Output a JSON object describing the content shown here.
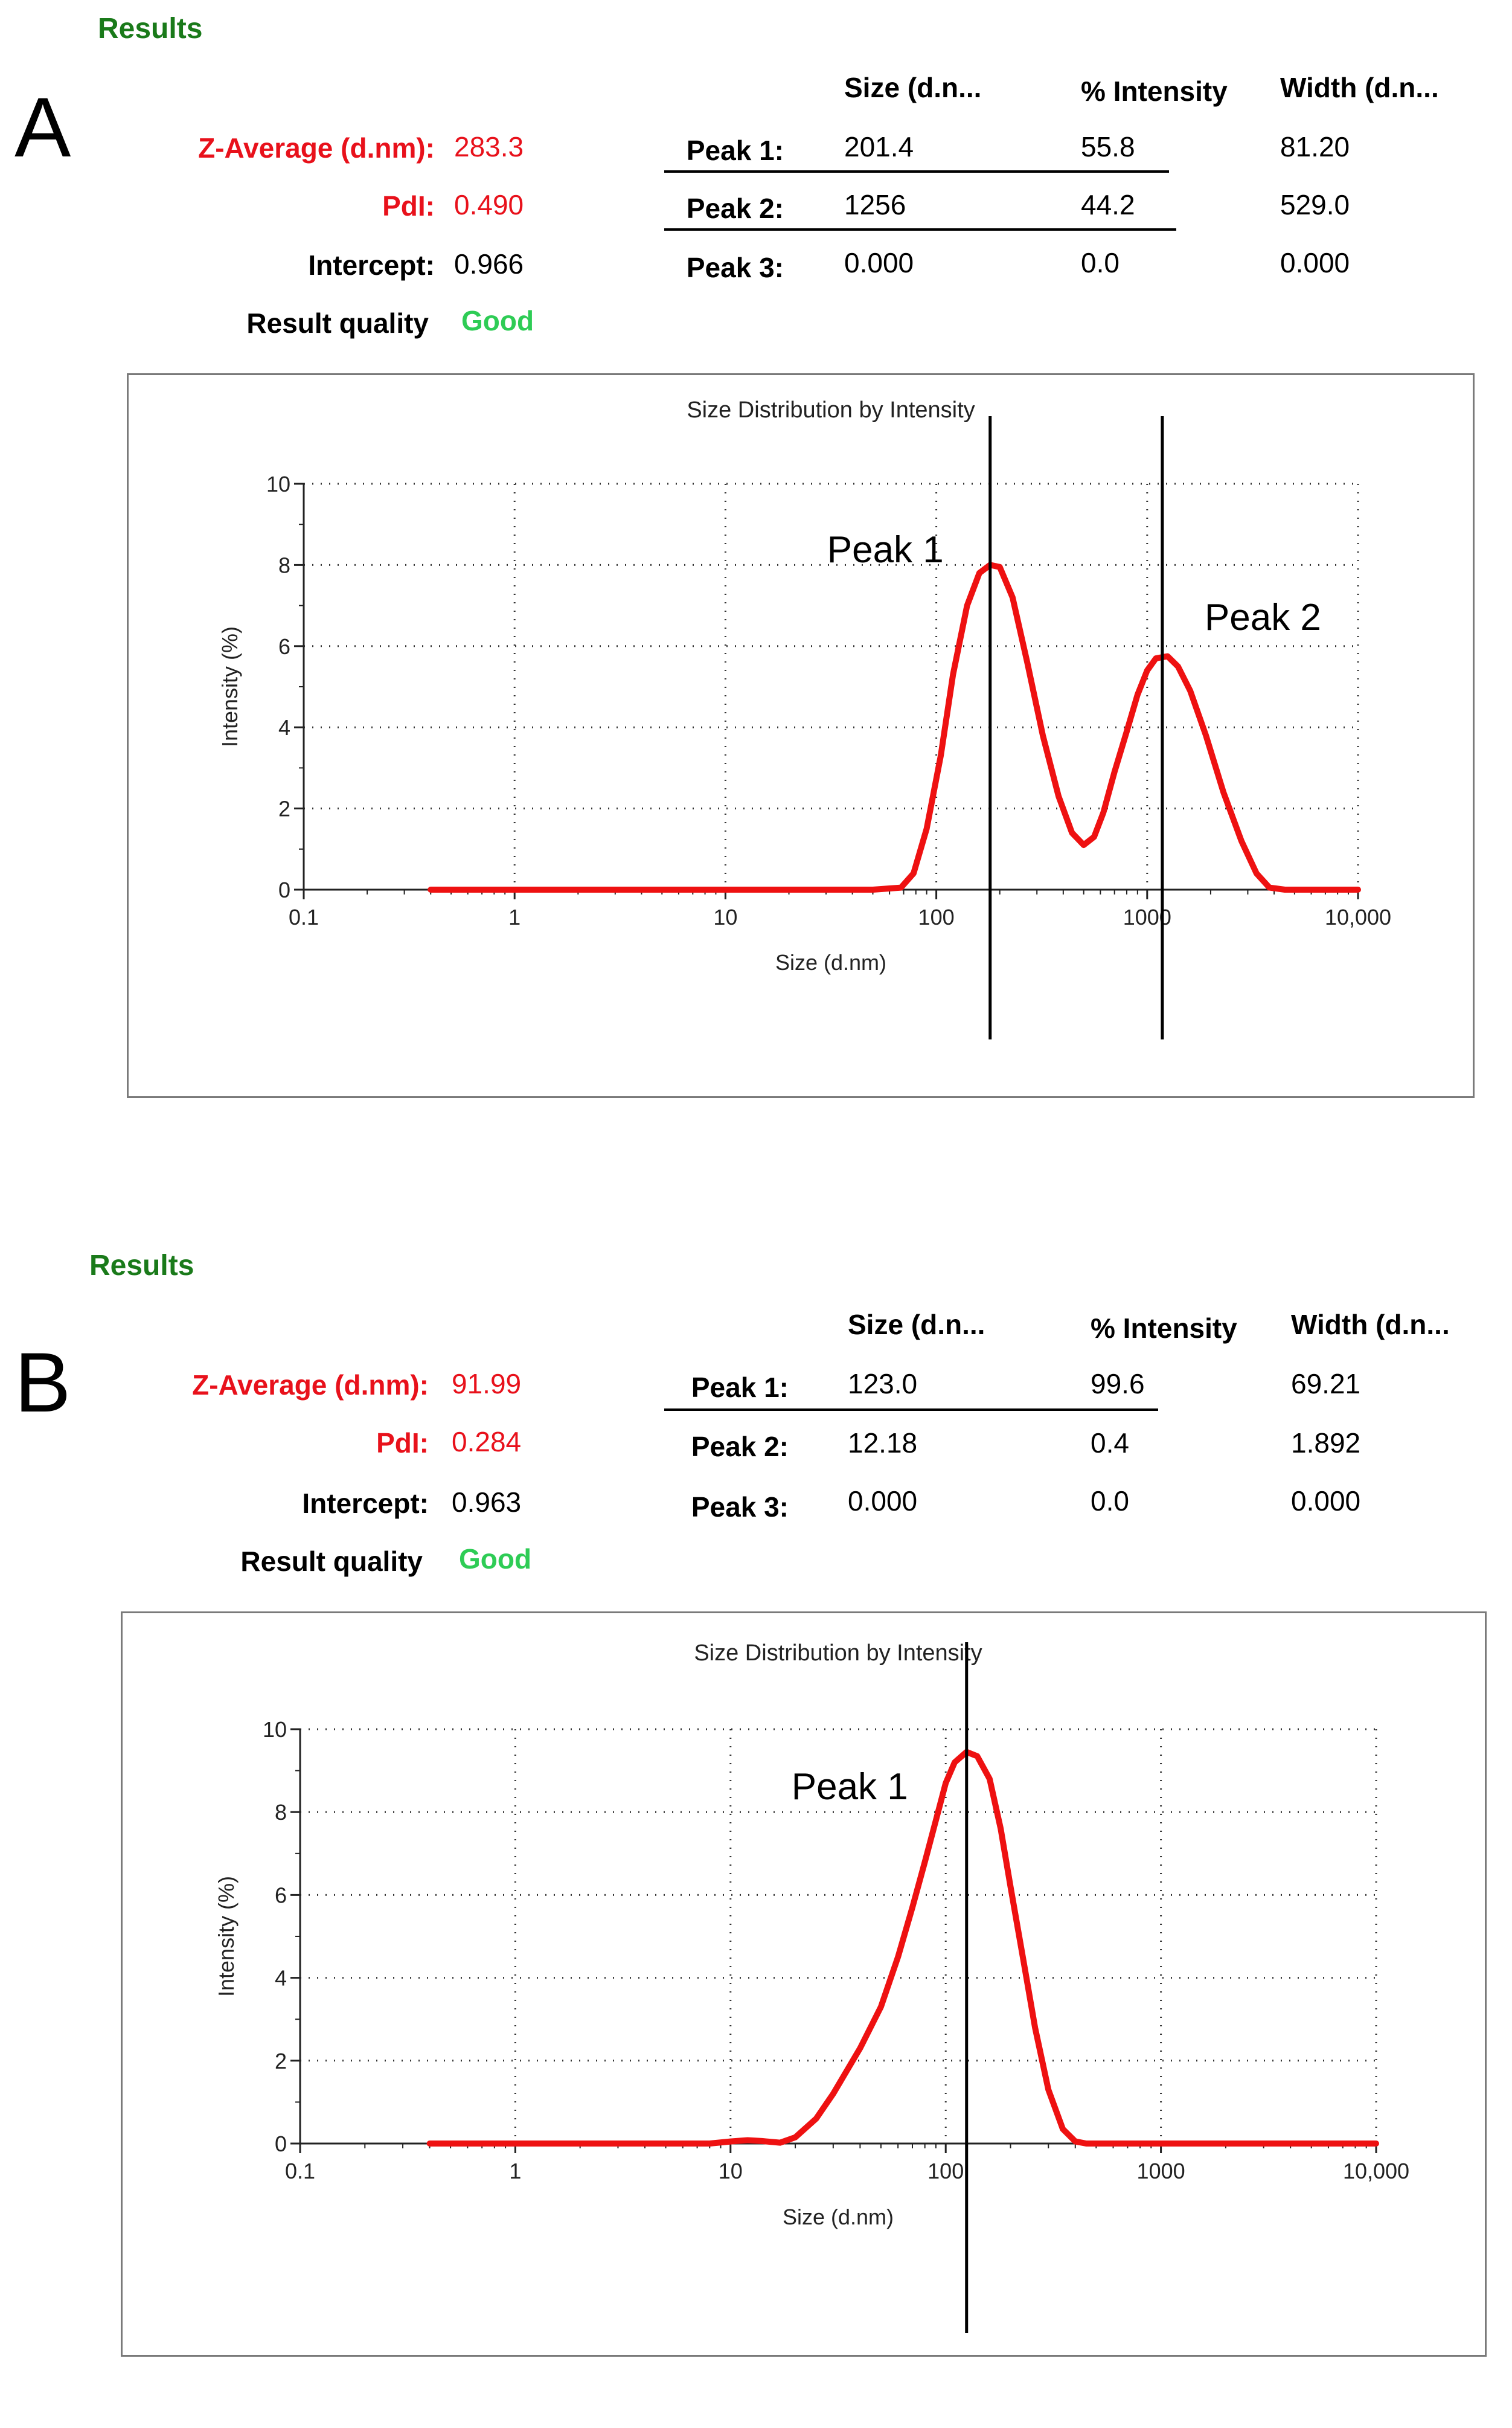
{
  "panels": [
    {
      "letter": "A",
      "results_title": "Results",
      "summary": {
        "z_average_label": "Z-Average (d.nm):",
        "z_average_value": "283.3",
        "pdi_label": "PdI:",
        "pdi_value": "0.490",
        "intercept_label": "Intercept:",
        "intercept_value": "0.966",
        "quality_label": "Result quality",
        "quality_value": "Good"
      },
      "peak_table": {
        "headers": [
          "Size (d.n...",
          "% Intensity",
          "Width (d.n..."
        ],
        "rows": [
          {
            "label": "Peak 1:",
            "size": "201.4",
            "intensity": "55.8",
            "width": "81.20"
          },
          {
            "label": "Peak 2:",
            "size": "1256",
            "intensity": "44.2",
            "width": "529.0"
          },
          {
            "label": "Peak 3:",
            "size": "0.000",
            "intensity": "0.0",
            "width": "0.000"
          }
        ]
      }
    },
    {
      "letter": "B",
      "results_title": "Results",
      "summary": {
        "z_average_label": "Z-Average (d.nm):",
        "z_average_value": "91.99",
        "pdi_label": "PdI:",
        "pdi_value": "0.284",
        "intercept_label": "Intercept:",
        "intercept_value": "0.963",
        "quality_label": "Result quality",
        "quality_value": "Good"
      },
      "peak_table": {
        "headers": [
          "Size (d.n...",
          "% Intensity",
          "Width (d.n..."
        ],
        "rows": [
          {
            "label": "Peak 1:",
            "size": "123.0",
            "intensity": "99.6",
            "width": "69.21"
          },
          {
            "label": "Peak 2:",
            "size": "12.18",
            "intensity": "0.4",
            "width": "1.892"
          },
          {
            "label": "Peak 3:",
            "size": "0.000",
            "intensity": "0.0",
            "width": "0.000"
          }
        ]
      }
    }
  ],
  "colors": {
    "results_title": "#1a7a1a",
    "red_values": "#e8111b",
    "good": "#2ecc55",
    "curve": "#ee1111",
    "grid": "#333333"
  },
  "chart_data": [
    {
      "type": "line",
      "title": "Size Distribution by Intensity",
      "xlabel": "Size (d.nm)",
      "ylabel": "Intensity (%)",
      "xscale": "log",
      "xlim": [
        0.1,
        10000
      ],
      "ylim": [
        0,
        10
      ],
      "xticks": [
        0.1,
        1,
        10,
        100,
        1000,
        10000
      ],
      "xtick_labels": [
        "0.1",
        "1",
        "10",
        "100",
        "1000",
        "10,000"
      ],
      "yticks": [
        0,
        2,
        4,
        6,
        8,
        10
      ],
      "ytick_labels": [
        "0",
        "2",
        "4",
        "6",
        "8",
        "10"
      ],
      "grid": true,
      "series": [
        {
          "name": "Intensity",
          "x": [
            0.4,
            1,
            10,
            50,
            68,
            78,
            90,
            105,
            120,
            140,
            160,
            180,
            200,
            230,
            270,
            320,
            380,
            440,
            500,
            560,
            620,
            700,
            800,
            900,
            1000,
            1100,
            1250,
            1400,
            1600,
            1900,
            2300,
            2800,
            3300,
            3800,
            4500,
            10000
          ],
          "y": [
            0,
            0,
            0,
            0,
            0.05,
            0.4,
            1.5,
            3.3,
            5.3,
            7.0,
            7.8,
            8.0,
            7.95,
            7.2,
            5.6,
            3.8,
            2.3,
            1.4,
            1.1,
            1.3,
            1.9,
            2.9,
            3.9,
            4.8,
            5.4,
            5.7,
            5.75,
            5.5,
            4.9,
            3.8,
            2.4,
            1.2,
            0.4,
            0.05,
            0,
            0
          ]
        }
      ],
      "annotations": [
        {
          "text": "Peak 1",
          "x": 180
        },
        {
          "text": "Peak 2",
          "x": 1180
        }
      ],
      "vlines": [
        180,
        1180
      ]
    },
    {
      "type": "line",
      "title": "Size Distribution by Intensity",
      "xlabel": "Size (d.nm)",
      "ylabel": "Intensity (%)",
      "xscale": "log",
      "xlim": [
        0.1,
        10000
      ],
      "ylim": [
        0,
        10
      ],
      "xticks": [
        0.1,
        1,
        10,
        100,
        1000,
        10000
      ],
      "xtick_labels": [
        "0.1",
        "1",
        "10",
        "100",
        "1000",
        "10,000"
      ],
      "yticks": [
        0,
        2,
        4,
        6,
        8,
        10
      ],
      "ytick_labels": [
        "0",
        "2",
        "4",
        "6",
        "8",
        "10"
      ],
      "grid": true,
      "series": [
        {
          "name": "Intensity",
          "x": [
            0.4,
            1,
            8,
            10,
            12,
            14,
            17,
            20,
            25,
            30,
            40,
            50,
            60,
            70,
            80,
            90,
            100,
            110,
            125,
            140,
            160,
            180,
            200,
            230,
            260,
            300,
            350,
            400,
            450,
            500,
            10000
          ],
          "y": [
            0,
            0,
            0,
            0.05,
            0.08,
            0.06,
            0.02,
            0.15,
            0.6,
            1.2,
            2.3,
            3.3,
            4.5,
            5.7,
            6.8,
            7.8,
            8.7,
            9.2,
            9.45,
            9.35,
            8.8,
            7.6,
            6.2,
            4.4,
            2.8,
            1.3,
            0.35,
            0.05,
            0,
            0,
            0
          ]
        }
      ],
      "annotations": [
        {
          "text": "Peak 1",
          "x": 125
        }
      ],
      "vlines": [
        125
      ]
    }
  ]
}
